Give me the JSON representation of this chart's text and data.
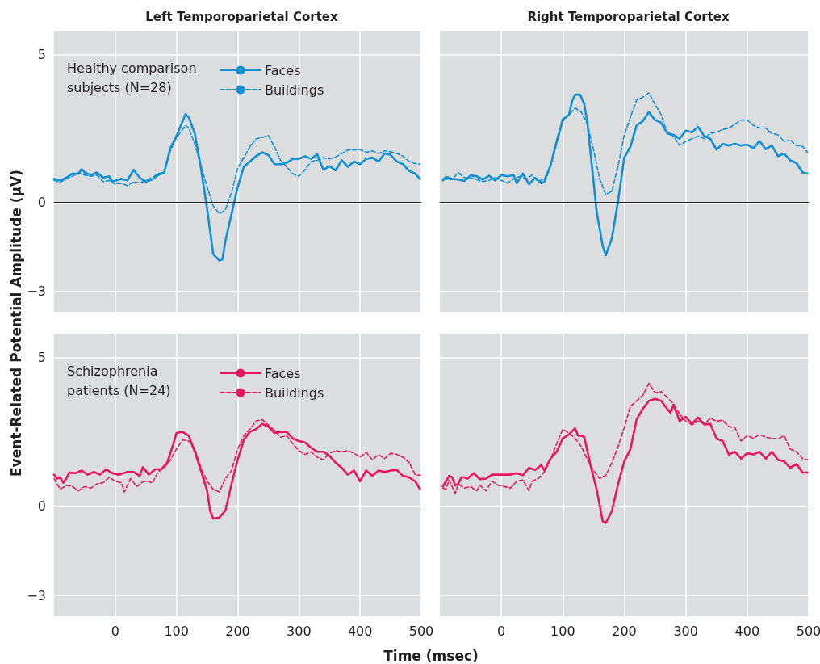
{
  "chart_data": [
    {
      "type": "line",
      "title": "Left Temporoparietal Cortex",
      "ylabel": "Event-Related Potential Amplitude (μV)",
      "legend_title": "Healthy comparison\nsubjects (N=28)",
      "legend": "top",
      "grid": true,
      "marker": "none",
      "tick_labels": "y",
      "xlim": [
        -100,
        500
      ],
      "xticks": [
        0,
        100,
        200,
        300,
        400,
        500
      ],
      "ylim": [
        -3.7,
        5.8
      ],
      "yticks": [
        {
          "value": -3,
          "label": "−3"
        },
        0,
        5
      ],
      "ref_lines": [
        {
          "axis": "y",
          "value": 0,
          "color": "#231f20"
        }
      ],
      "series": [
        {
          "name": "Faces",
          "color": "#0f8fd4",
          "line_style": "solid",
          "x": [
            -100,
            -90,
            -80,
            -70,
            -60,
            -55,
            -50,
            -40,
            -30,
            -20,
            -10,
            -5,
            10,
            20,
            30,
            40,
            50,
            60,
            70,
            80,
            90,
            100,
            110,
            115,
            120,
            130,
            140,
            150,
            160,
            170,
            175,
            180,
            190,
            200,
            210,
            220,
            230,
            240,
            250,
            260,
            270,
            280,
            290,
            300,
            310,
            320,
            330,
            340,
            350,
            360,
            370,
            380,
            390,
            400,
            410,
            420,
            430,
            440,
            450,
            460,
            470,
            480,
            490,
            498
          ],
          "values": [
            0.79,
            0.74,
            0.83,
            0.97,
            0.97,
            1.12,
            1.01,
            0.92,
            1.01,
            0.83,
            0.88,
            0.7,
            0.79,
            0.74,
            1.1,
            0.83,
            0.7,
            0.77,
            0.92,
            1.01,
            1.83,
            2.24,
            2.74,
            2.98,
            2.87,
            2.33,
            1.15,
            -0.21,
            -1.75,
            -1.97,
            -1.93,
            -1.3,
            -0.39,
            0.52,
            1.2,
            1.38,
            1.56,
            1.69,
            1.6,
            1.29,
            1.29,
            1.33,
            1.47,
            1.47,
            1.56,
            1.47,
            1.62,
            1.1,
            1.22,
            1.08,
            1.42,
            1.2,
            1.38,
            1.29,
            1.47,
            1.51,
            1.38,
            1.65,
            1.6,
            1.38,
            1.29,
            1.06,
            0.97,
            0.79
          ]
        },
        {
          "name": "Buildings",
          "color": "#0f8fd4",
          "line_style": "dashed",
          "x": [
            -100,
            -90,
            -80,
            -70,
            -60,
            -50,
            -40,
            -30,
            -20,
            -10,
            0,
            10,
            20,
            30,
            40,
            50,
            60,
            70,
            80,
            90,
            100,
            110,
            115,
            120,
            130,
            140,
            150,
            160,
            170,
            180,
            190,
            200,
            210,
            220,
            230,
            240,
            250,
            260,
            270,
            280,
            290,
            300,
            310,
            320,
            330,
            340,
            350,
            360,
            370,
            380,
            390,
            400,
            410,
            420,
            430,
            440,
            450,
            460,
            470,
            480,
            490,
            498
          ],
          "values": [
            0.74,
            0.68,
            0.79,
            0.88,
            1.0,
            0.92,
            0.88,
            0.92,
            0.7,
            0.74,
            0.61,
            0.65,
            0.56,
            0.7,
            0.65,
            0.74,
            0.83,
            0.97,
            1.01,
            1.74,
            2.19,
            2.46,
            2.6,
            2.51,
            1.97,
            1.24,
            0.52,
            -0.12,
            -0.39,
            -0.25,
            0.34,
            1.15,
            1.51,
            1.88,
            2.15,
            2.19,
            2.26,
            1.88,
            1.42,
            1.2,
            0.97,
            0.88,
            1.1,
            1.38,
            1.42,
            1.51,
            1.47,
            1.53,
            1.65,
            1.77,
            1.77,
            1.78,
            1.69,
            1.74,
            1.65,
            1.74,
            1.71,
            1.65,
            1.56,
            1.38,
            1.31,
            1.29
          ]
        }
      ]
    },
    {
      "type": "line",
      "title": "Right Temporoparietal Cortex",
      "grid": true,
      "marker": "none",
      "tick_labels": false,
      "xlim": [
        -100,
        500
      ],
      "xticks": [
        0,
        100,
        200,
        300,
        400,
        500
      ],
      "ylim": [
        -3.7,
        5.8
      ],
      "yticks": [
        -3,
        0,
        5
      ],
      "ref_lines": [
        {
          "axis": "y",
          "value": 0,
          "color": "#231f20"
        }
      ],
      "series": [
        {
          "color": "#0f8fd4",
          "line_style": "solid",
          "x": [
            -95,
            -90,
            -80,
            -70,
            -60,
            -50,
            -40,
            -30,
            -20,
            -10,
            0,
            10,
            20,
            25,
            35,
            45,
            55,
            65,
            70,
            80,
            90,
            100,
            110,
            115,
            120,
            128,
            135,
            140,
            150,
            155,
            165,
            170,
            180,
            190,
            200,
            210,
            220,
            230,
            240,
            250,
            260,
            270,
            280,
            290,
            300,
            310,
            320,
            330,
            340,
            350,
            360,
            370,
            380,
            390,
            400,
            410,
            420,
            430,
            440,
            450,
            460,
            470,
            480,
            490,
            498
          ],
          "values": [
            0.74,
            0.86,
            0.79,
            0.77,
            0.72,
            0.91,
            0.88,
            0.77,
            0.9,
            0.74,
            0.92,
            0.88,
            0.92,
            0.65,
            0.97,
            0.61,
            0.83,
            0.65,
            0.7,
            1.24,
            2.06,
            2.8,
            2.96,
            3.41,
            3.64,
            3.64,
            3.32,
            2.69,
            0.7,
            -0.3,
            -1.48,
            -1.79,
            -1.2,
            0.06,
            1.51,
            1.88,
            2.6,
            2.74,
            3.05,
            2.78,
            2.69,
            2.33,
            2.28,
            2.15,
            2.42,
            2.37,
            2.55,
            2.24,
            2.15,
            1.78,
            1.97,
            1.92,
            1.98,
            1.92,
            1.95,
            1.83,
            2.07,
            1.8,
            1.92,
            1.56,
            1.65,
            1.42,
            1.33,
            1.01,
            0.97
          ]
        },
        {
          "color": "#0f8fd4",
          "line_style": "dashed",
          "x": [
            -95,
            -80,
            -70,
            -60,
            -50,
            -40,
            -30,
            -20,
            -10,
            0,
            10,
            20,
            30,
            40,
            50,
            60,
            70,
            80,
            90,
            100,
            110,
            120,
            130,
            140,
            150,
            160,
            170,
            180,
            190,
            200,
            210,
            220,
            230,
            240,
            250,
            260,
            270,
            280,
            290,
            300,
            310,
            320,
            330,
            340,
            350,
            360,
            370,
            380,
            390,
            400,
            410,
            420,
            430,
            440,
            450,
            460,
            470,
            480,
            490,
            498
          ],
          "values": [
            0.79,
            0.77,
            1.01,
            0.83,
            0.83,
            0.77,
            0.7,
            0.74,
            0.83,
            0.74,
            0.65,
            0.79,
            0.88,
            0.79,
            0.92,
            0.7,
            0.79,
            1.24,
            1.97,
            2.74,
            2.96,
            3.19,
            3.05,
            2.64,
            1.78,
            0.79,
            0.26,
            0.38,
            1.24,
            2.28,
            2.87,
            3.46,
            3.55,
            3.7,
            3.32,
            2.96,
            2.33,
            2.24,
            1.92,
            2.06,
            2.15,
            2.24,
            2.15,
            2.33,
            2.37,
            2.46,
            2.51,
            2.64,
            2.78,
            2.78,
            2.6,
            2.51,
            2.51,
            2.33,
            2.28,
            2.06,
            2.1,
            1.92,
            1.89,
            1.69
          ]
        }
      ]
    },
    {
      "type": "line",
      "xlabel": "Time (msec)",
      "legend_title": "Schizophrenia\npatients (N=24)",
      "legend": "top",
      "grid": true,
      "marker": "none",
      "xlim": [
        -100,
        500
      ],
      "xticks": [
        0,
        100,
        200,
        300,
        400,
        500
      ],
      "ylim": [
        -3.7,
        5.8
      ],
      "yticks": [
        {
          "value": -3,
          "label": "−3"
        },
        0,
        5
      ],
      "ref_lines": [
        {
          "axis": "y",
          "value": 0,
          "color": "#231f20"
        }
      ],
      "series": [
        {
          "name": "Faces",
          "color": "#e8175d",
          "line_style": "solid",
          "x": [
            -100,
            -95,
            -90,
            -85,
            -80,
            -75,
            -65,
            -55,
            -45,
            -35,
            -25,
            -15,
            -5,
            5,
            20,
            30,
            40,
            45,
            55,
            65,
            75,
            85,
            95,
            100,
            110,
            120,
            130,
            140,
            150,
            155,
            160,
            170,
            180,
            190,
            200,
            210,
            220,
            230,
            240,
            250,
            260,
            270,
            280,
            290,
            300,
            310,
            320,
            330,
            340,
            350,
            360,
            370,
            380,
            390,
            400,
            410,
            420,
            430,
            440,
            450,
            460,
            470,
            480,
            490,
            498
          ],
          "values": [
            1.06,
            0.93,
            0.97,
            0.79,
            0.93,
            1.13,
            1.11,
            1.2,
            1.06,
            1.15,
            1.06,
            1.24,
            1.11,
            1.06,
            1.15,
            1.15,
            1.02,
            1.31,
            1.06,
            1.24,
            1.24,
            1.47,
            2.1,
            2.46,
            2.5,
            2.37,
            1.83,
            1.2,
            0.52,
            -0.15,
            -0.42,
            -0.38,
            -0.15,
            0.75,
            1.56,
            2.23,
            2.5,
            2.59,
            2.77,
            2.68,
            2.46,
            2.5,
            2.5,
            2.28,
            2.19,
            2.14,
            1.96,
            1.83,
            1.83,
            1.69,
            1.47,
            1.29,
            1.06,
            1.2,
            0.84,
            1.2,
            1.02,
            1.2,
            1.15,
            1.2,
            1.22,
            1.02,
            0.97,
            0.84,
            0.57
          ]
        },
        {
          "name": "Buildings",
          "color": "#e8175d",
          "line_style": "dashed",
          "x": [
            -100,
            -90,
            -80,
            -70,
            -60,
            -50,
            -40,
            -30,
            -20,
            -10,
            0,
            10,
            15,
            25,
            35,
            45,
            55,
            60,
            70,
            80,
            90,
            100,
            110,
            120,
            130,
            140,
            150,
            160,
            170,
            180,
            190,
            200,
            210,
            220,
            230,
            240,
            250,
            260,
            270,
            280,
            290,
            300,
            310,
            320,
            330,
            340,
            350,
            360,
            370,
            380,
            390,
            400,
            410,
            420,
            430,
            440,
            450,
            460,
            470,
            480,
            490,
            498
          ],
          "values": [
            0.93,
            0.57,
            0.7,
            0.66,
            0.52,
            0.66,
            0.61,
            0.75,
            0.79,
            0.97,
            0.84,
            0.79,
            0.48,
            0.93,
            0.66,
            0.82,
            0.84,
            0.77,
            1.15,
            1.29,
            1.56,
            1.92,
            2.23,
            2.19,
            1.92,
            1.29,
            0.84,
            0.57,
            0.48,
            0.93,
            1.2,
            1.92,
            2.37,
            2.59,
            2.86,
            2.91,
            2.73,
            2.55,
            2.32,
            2.37,
            2.1,
            1.87,
            1.74,
            1.83,
            1.65,
            1.56,
            1.78,
            1.87,
            1.83,
            1.87,
            1.78,
            1.65,
            1.81,
            1.56,
            1.74,
            1.6,
            1.78,
            1.74,
            1.65,
            1.47,
            1.06,
            1.04
          ]
        }
      ]
    },
    {
      "type": "line",
      "grid": true,
      "marker": "none",
      "tick_labels": "x",
      "xlim": [
        -100,
        500
      ],
      "xticks": [
        0,
        100,
        200,
        300,
        400,
        500
      ],
      "ylim": [
        -3.7,
        5.8
      ],
      "yticks": [
        -3,
        0,
        5
      ],
      "ref_lines": [
        {
          "axis": "y",
          "value": 0,
          "color": "#231f20"
        }
      ],
      "series": [
        {
          "color": "#e8175d",
          "line_style": "solid",
          "x": [
            -95,
            -90,
            -85,
            -80,
            -75,
            -70,
            -65,
            -60,
            -55,
            -45,
            -35,
            -25,
            -15,
            -5,
            5,
            15,
            25,
            35,
            45,
            55,
            65,
            70,
            80,
            90,
            100,
            110,
            120,
            125,
            130,
            135,
            145,
            155,
            165,
            170,
            180,
            190,
            200,
            210,
            220,
            230,
            240,
            250,
            260,
            270,
            275,
            280,
            290,
            300,
            310,
            320,
            330,
            340,
            350,
            360,
            370,
            380,
            390,
            400,
            410,
            420,
            430,
            440,
            450,
            460,
            470,
            480,
            490,
            498
          ],
          "values": [
            0.66,
            0.84,
            1.02,
            0.97,
            0.7,
            0.75,
            0.97,
            0.97,
            0.93,
            1.11,
            0.91,
            0.93,
            1.06,
            1.06,
            1.06,
            1.06,
            1.11,
            1.04,
            1.29,
            1.22,
            1.38,
            1.2,
            1.6,
            1.83,
            2.28,
            2.41,
            2.62,
            2.37,
            2.37,
            2.32,
            1.38,
            0.57,
            -0.51,
            -0.56,
            -0.15,
            0.75,
            1.51,
            1.92,
            2.91,
            3.27,
            3.54,
            3.61,
            3.54,
            3.27,
            3.14,
            3.41,
            2.86,
            3.0,
            2.77,
            2.98,
            2.75,
            2.77,
            2.28,
            2.19,
            1.74,
            1.83,
            1.6,
            1.78,
            1.74,
            1.83,
            1.6,
            1.83,
            1.56,
            1.51,
            1.29,
            1.42,
            1.13,
            1.13
          ]
        },
        {
          "color": "#e8175d",
          "line_style": "dashed",
          "x": [
            -95,
            -90,
            -85,
            -75,
            -70,
            -60,
            -50,
            -40,
            -35,
            -25,
            -15,
            -5,
            5,
            15,
            25,
            35,
            45,
            50,
            60,
            70,
            80,
            90,
            100,
            110,
            120,
            130,
            140,
            150,
            160,
            170,
            180,
            190,
            200,
            210,
            220,
            230,
            240,
            250,
            260,
            270,
            280,
            290,
            300,
            310,
            320,
            330,
            340,
            350,
            360,
            370,
            380,
            390,
            400,
            410,
            420,
            430,
            440,
            450,
            460,
            470,
            480,
            490,
            498
          ],
          "values": [
            0.61,
            0.57,
            0.88,
            0.43,
            0.75,
            0.61,
            0.66,
            0.52,
            0.7,
            0.52,
            0.84,
            0.7,
            0.66,
            0.61,
            0.84,
            0.88,
            0.52,
            0.84,
            0.93,
            1.15,
            1.56,
            2.1,
            2.59,
            2.46,
            2.28,
            2.01,
            1.56,
            1.2,
            0.93,
            1.04,
            1.47,
            2.01,
            2.64,
            3.36,
            3.54,
            3.72,
            4.13,
            3.81,
            3.85,
            3.65,
            3.45,
            3.09,
            2.86,
            2.73,
            2.86,
            2.77,
            2.95,
            2.86,
            2.89,
            2.68,
            2.64,
            2.19,
            2.37,
            2.28,
            2.41,
            2.32,
            2.28,
            2.26,
            2.37,
            1.92,
            1.83,
            1.6,
            1.56
          ]
        }
      ]
    }
  ]
}
